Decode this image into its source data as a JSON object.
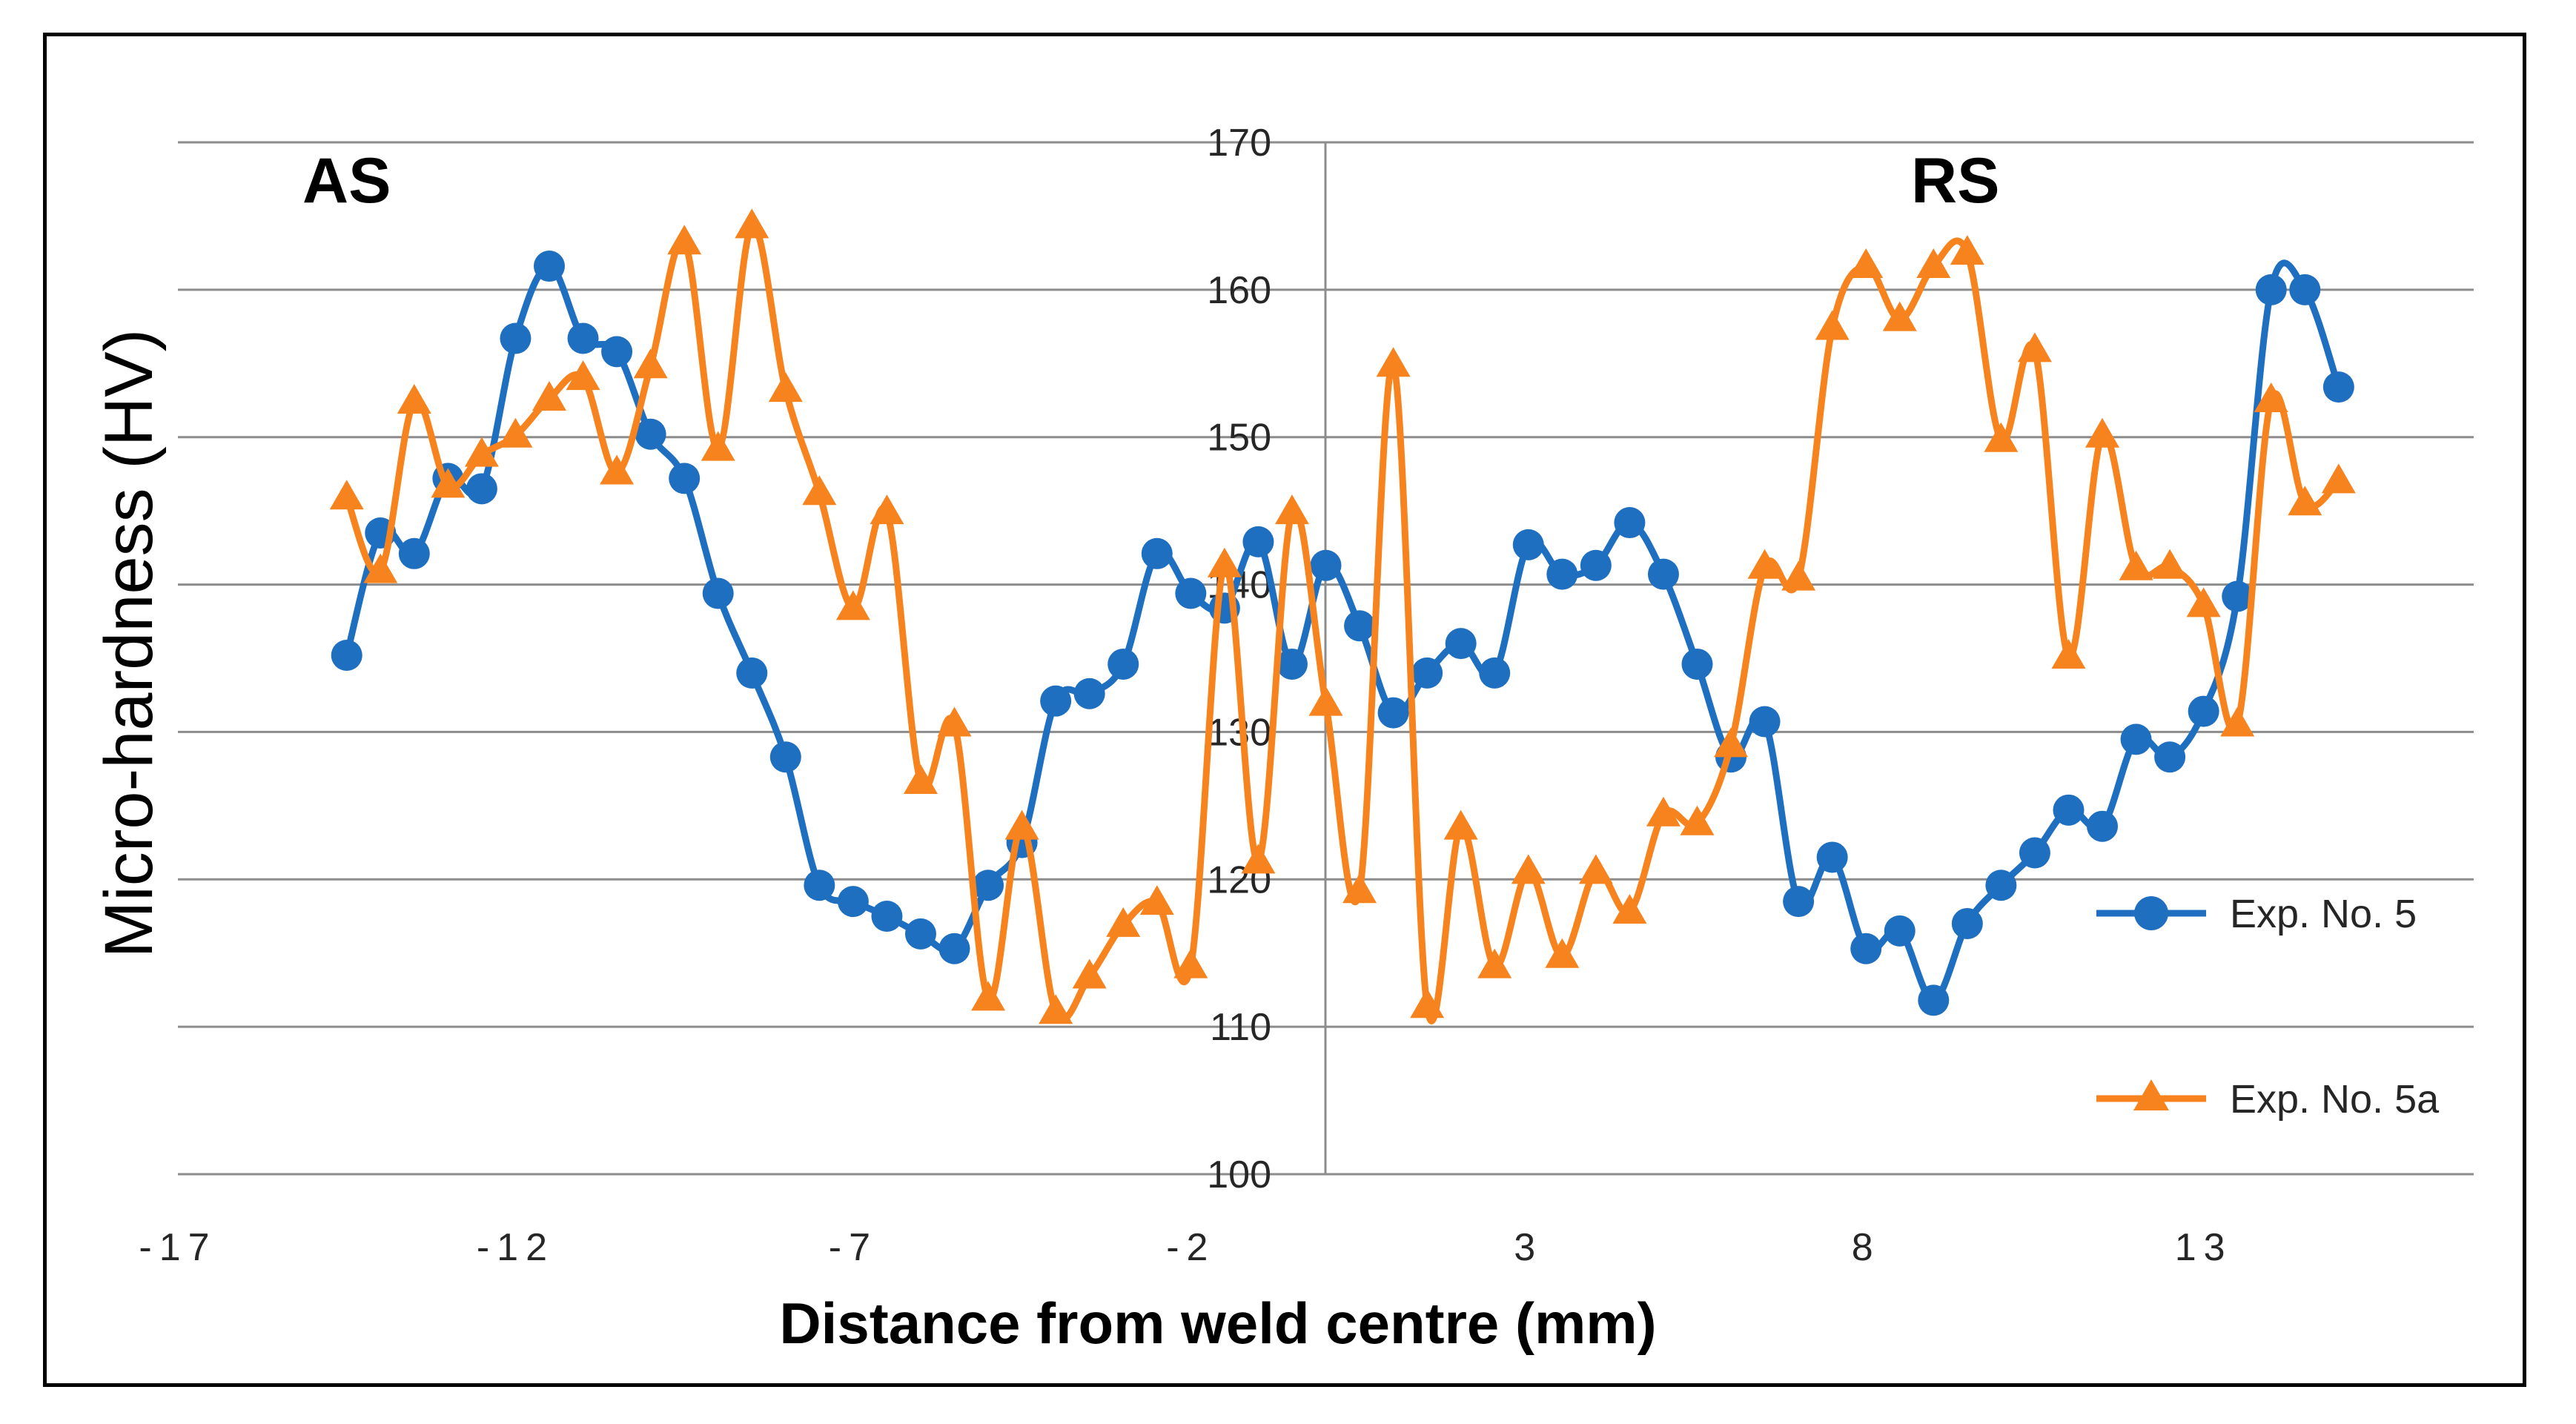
{
  "chart_data": {
    "type": "line",
    "title": "",
    "xlabel": "Distance from weld centre (mm)",
    "ylabel": "Micro-hardness (HV)",
    "xlim": [
      -17,
      17
    ],
    "ylim": [
      100,
      170
    ],
    "xticks": [
      -17,
      -12,
      -7,
      -2,
      3,
      8,
      13
    ],
    "xtick_labels": [
      "-17",
      "-12",
      "-7",
      "-2",
      "3",
      "8",
      "13"
    ],
    "yticks": [
      100,
      110,
      120,
      130,
      140,
      150,
      160,
      170
    ],
    "ytick_labels": [
      "100",
      "110",
      "120",
      "130",
      "140",
      "150",
      "160",
      "170"
    ],
    "grid": true,
    "legend_position": "right",
    "annotations": [
      {
        "text": "AS",
        "position": "top-left"
      },
      {
        "text": "RS",
        "position": "top-right"
      }
    ],
    "series": [
      {
        "name": "Exp. No. 5",
        "color": "#1F6FC1",
        "marker": "circle",
        "x": [
          -14.5,
          -14,
          -13.5,
          -13,
          -12.5,
          -12,
          -11.5,
          -11,
          -10.5,
          -10,
          -9.5,
          -9,
          -8.5,
          -8,
          -7.5,
          -7,
          -6.5,
          -6,
          -5.5,
          -5,
          -4.5,
          -4,
          -3.5,
          -3,
          -2.5,
          -2,
          -1.5,
          -1,
          -0.5,
          0,
          0.5,
          1,
          1.5,
          2,
          2.5,
          3,
          3.5,
          4,
          4.5,
          5,
          5.5,
          6,
          6.5,
          7,
          7.5,
          8,
          8.5,
          9,
          9.5,
          10,
          10.5,
          11,
          11.5,
          12,
          12.5,
          13,
          13.5,
          14,
          14.5,
          15
        ],
        "y": [
          135.2,
          143.5,
          142.1,
          147.2,
          146.5,
          156.7,
          161.6,
          156.7,
          155.8,
          150.2,
          147.2,
          139.4,
          134,
          128.3,
          119.6,
          118.5,
          117.5,
          116.3,
          115.3,
          119.6,
          122.5,
          132.1,
          132.6,
          134.6,
          142.1,
          139.4,
          138.4,
          142.9,
          134.6,
          141.3,
          137.2,
          131.3,
          134,
          136,
          134,
          142.7,
          140.7,
          141.3,
          144.2,
          140.7,
          134.6,
          128.3,
          130.7,
          118.5,
          121.5,
          115.3,
          116.5,
          111.8,
          117,
          119.6,
          121.8,
          124.7,
          123.6,
          129.5,
          128.3,
          131.4,
          139.2,
          160,
          160,
          153.4
        ]
      },
      {
        "name": "Exp. No. 5a",
        "color": "#F7831E",
        "marker": "triangle",
        "x": [
          -14.5,
          -14,
          -13.5,
          -13,
          -12.5,
          -12,
          -11.5,
          -11,
          -10.5,
          -10,
          -9.5,
          -9,
          -8.5,
          -8,
          -7.5,
          -7,
          -6.5,
          -6,
          -5.5,
          -5,
          -4.5,
          -4,
          -3.5,
          -3,
          -2.5,
          -2,
          -1.5,
          -1,
          -0.5,
          0,
          0.5,
          1,
          1.5,
          2,
          2.5,
          3,
          3.5,
          4,
          4.5,
          5,
          5.5,
          6,
          6.5,
          7,
          7.5,
          8,
          8.5,
          9,
          9.5,
          10,
          10.5,
          11,
          11.5,
          12,
          12.5,
          13,
          13.5,
          14,
          14.5,
          15
        ],
        "y": [
          145.9,
          140.9,
          152.4,
          146.7,
          148.8,
          150.1,
          152.6,
          154,
          147.6,
          154.8,
          163.2,
          149.2,
          164.3,
          153.2,
          146.2,
          138.4,
          144.9,
          126.6,
          130.5,
          111.9,
          123.5,
          111,
          113.4,
          116.9,
          118.4,
          114.1,
          141.3,
          121.2,
          144.9,
          131.9,
          119.2,
          154.9,
          111.4,
          123.5,
          114.1,
          120.5,
          114.8,
          120.5,
          117.8,
          124.4,
          123.8,
          129.1,
          141.2,
          140.4,
          157.4,
          161.6,
          158,
          161.6,
          162.5,
          149.8,
          155.9,
          135.1,
          150.1,
          141.1,
          141.2,
          138.6,
          130.5,
          152.5,
          145.5,
          147
        ]
      }
    ]
  }
}
